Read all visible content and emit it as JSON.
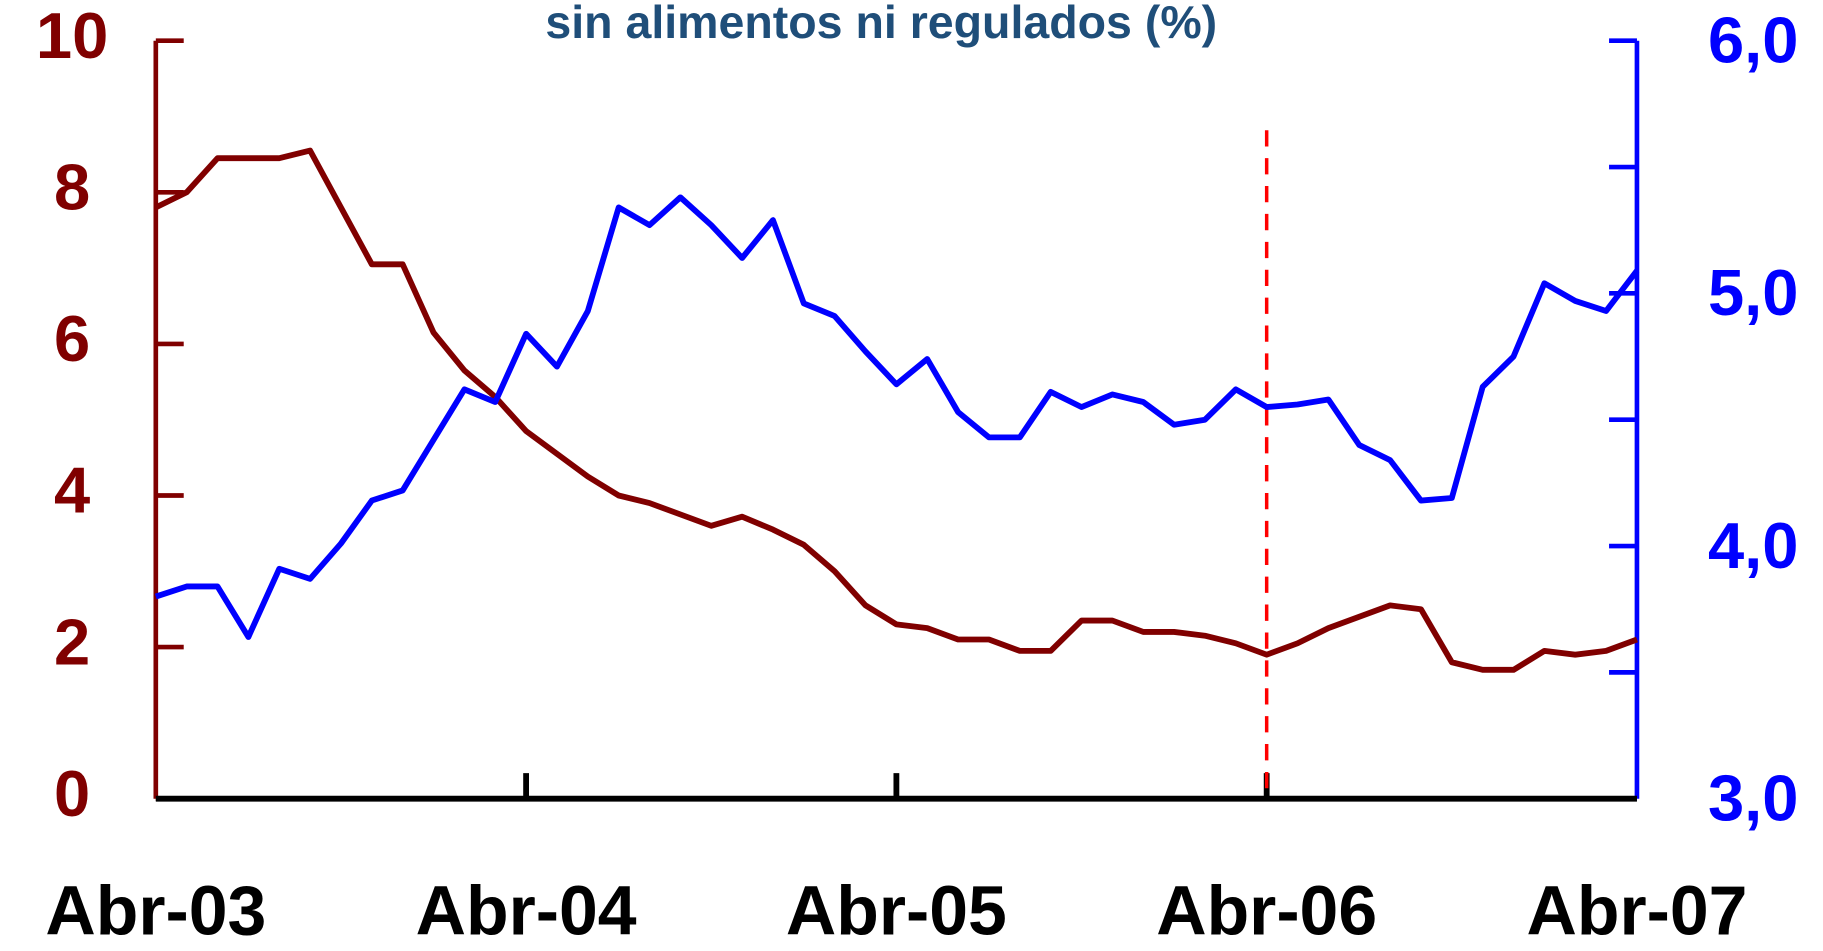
{
  "chart_data": {
    "type": "line",
    "title": "sin alimentos ni regulados (%)",
    "categories": [
      "Abr-03",
      null,
      null,
      null,
      null,
      null,
      null,
      null,
      null,
      null,
      null,
      null,
      "Abr-04",
      null,
      null,
      null,
      null,
      null,
      null,
      null,
      null,
      null,
      null,
      null,
      "Abr-05",
      null,
      null,
      null,
      null,
      null,
      null,
      null,
      null,
      null,
      null,
      null,
      "Abr-06",
      null,
      null,
      null,
      null,
      null,
      null,
      null,
      null,
      null,
      null,
      null,
      "Abr-07"
    ],
    "series": [
      {
        "color": "#800000",
        "axis": "y",
        "values": [
          7.8,
          8.0,
          8.45,
          8.45,
          8.45,
          8.55,
          7.8,
          7.05,
          7.05,
          6.15,
          5.65,
          5.3,
          4.85,
          4.55,
          4.25,
          4.0,
          3.9,
          3.75,
          3.6,
          3.72,
          3.55,
          3.35,
          3.0,
          2.55,
          2.3,
          2.25,
          2.1,
          2.1,
          1.95,
          1.95,
          2.35,
          2.35,
          2.2,
          2.2,
          2.15,
          2.05,
          1.9,
          2.05,
          2.25,
          2.4,
          2.55,
          2.5,
          1.8,
          1.7,
          1.7,
          1.95,
          1.9,
          1.95,
          2.1
        ]
      },
      {
        "color": "#0000ff",
        "axis": "y2",
        "values": [
          3.8,
          3.84,
          3.84,
          3.64,
          3.91,
          3.87,
          4.01,
          4.18,
          4.22,
          4.42,
          4.62,
          4.57,
          4.84,
          4.71,
          4.93,
          5.34,
          5.27,
          5.38,
          5.27,
          5.14,
          5.29,
          4.96,
          4.91,
          4.77,
          4.64,
          4.74,
          4.53,
          4.43,
          4.43,
          4.61,
          4.55,
          4.6,
          4.57,
          4.48,
          4.5,
          4.62,
          4.55,
          4.56,
          4.58,
          4.4,
          4.34,
          4.18,
          4.19,
          4.63,
          4.75,
          5.04,
          4.97,
          4.93,
          5.09
        ]
      }
    ],
    "ylim": [
      0,
      10
    ],
    "yticks": [
      0,
      2,
      4,
      6,
      8,
      10
    ],
    "ycolor": "#800000",
    "y2lim": [
      3,
      6
    ],
    "y2ticks": [
      {
        "value": 3,
        "label": "3,0"
      },
      {
        "value": 4,
        "label": "4,0"
      },
      {
        "value": 5,
        "label": "5,0"
      },
      {
        "value": 6,
        "label": "6,0"
      }
    ],
    "y2minor_ticks": [
      3.5,
      4.5,
      5.5
    ],
    "y2color": "#0000ff",
    "reference_line": {
      "category_index": 36,
      "color": "#ff0000"
    },
    "grid": false
  }
}
